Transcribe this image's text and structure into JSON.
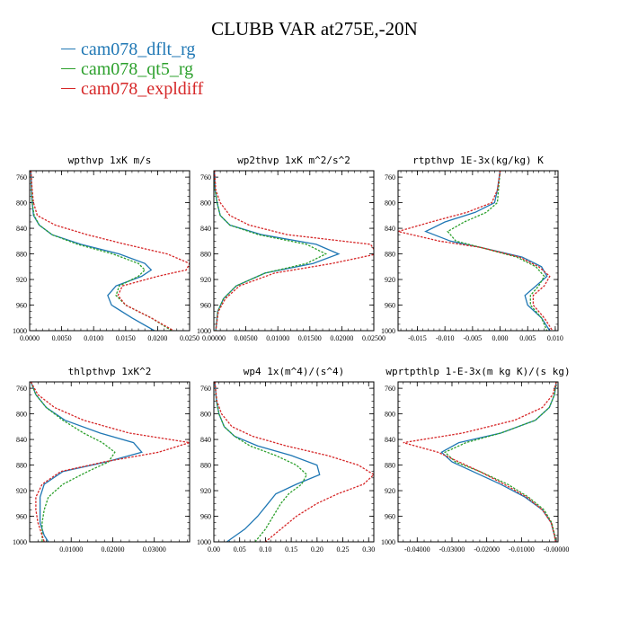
{
  "title": "CLUBB VAR at275E,-20N",
  "legend": [
    {
      "label": "cam078_dflt_rg",
      "color": "#1f77b4",
      "dash": false
    },
    {
      "label": "cam078_qt5_rg",
      "color": "#2ca02c",
      "dash": true
    },
    {
      "label": "cam078_expldiff",
      "color": "#d62728",
      "dash": true
    }
  ],
  "chart_data": [
    {
      "type": "line",
      "title": "wpthvp  1xK m/s",
      "xlim": [
        0,
        0.025
      ],
      "ylim": [
        1000,
        750
      ],
      "xticks": [
        0,
        0.005,
        0.01,
        0.015,
        0.02,
        0.025
      ],
      "xtick_labels": [
        "0.0000",
        "0.0050",
        "0.0100",
        "0.0150",
        "0.0200",
        "0.0250"
      ],
      "yticks": [
        760,
        800,
        840,
        880,
        920,
        960,
        1000
      ],
      "y": [
        750,
        780,
        800,
        820,
        835,
        850,
        865,
        880,
        895,
        905,
        915,
        930,
        945,
        960,
        980,
        1000
      ],
      "series": [
        {
          "name": "cam078_dflt_rg",
          "x": [
            0.0002,
            0.0003,
            0.0004,
            0.0006,
            0.0015,
            0.0035,
            0.008,
            0.014,
            0.018,
            0.019,
            0.0175,
            0.0135,
            0.0122,
            0.0128,
            0.016,
            0.0195
          ]
        },
        {
          "name": "cam078_qt5_rg",
          "x": [
            0.0002,
            0.0003,
            0.0004,
            0.0007,
            0.0015,
            0.0035,
            0.0075,
            0.013,
            0.017,
            0.018,
            0.017,
            0.014,
            0.0135,
            0.015,
            0.019,
            0.0222
          ]
        },
        {
          "name": "cam078_expldiff",
          "x": [
            0.0002,
            0.0004,
            0.0006,
            0.0012,
            0.004,
            0.009,
            0.015,
            0.0215,
            0.025,
            0.0245,
            0.02,
            0.0145,
            0.0138,
            0.015,
            0.019,
            0.0225
          ]
        }
      ]
    },
    {
      "type": "line",
      "title": "wp2thvp  1xK m^2/s^2",
      "xlim": [
        0,
        0.025
      ],
      "ylim": [
        1000,
        750
      ],
      "xticks": [
        0,
        0.005,
        0.01,
        0.015,
        0.02,
        0.025
      ],
      "xtick_labels": [
        "0.00000",
        "0.00500",
        "0.01000",
        "0.01500",
        "0.02000",
        "0.02500"
      ],
      "yticks": [
        760,
        800,
        840,
        880,
        920,
        960,
        1000
      ],
      "y": [
        750,
        780,
        800,
        820,
        835,
        850,
        865,
        880,
        895,
        910,
        930,
        950,
        970,
        1000
      ],
      "series": [
        {
          "name": "cam078_dflt_rg",
          "x": [
            0.0001,
            0.0002,
            0.0005,
            0.001,
            0.0025,
            0.0075,
            0.016,
            0.0195,
            0.0155,
            0.008,
            0.0035,
            0.0015,
            0.0006,
            0.0003
          ]
        },
        {
          "name": "cam078_qt5_rg",
          "x": [
            0.0001,
            0.0002,
            0.0005,
            0.001,
            0.0025,
            0.007,
            0.0145,
            0.0175,
            0.0145,
            0.008,
            0.0035,
            0.0015,
            0.0006,
            0.0003
          ]
        },
        {
          "name": "cam078_expldiff",
          "x": [
            0.0001,
            0.0003,
            0.001,
            0.0025,
            0.0055,
            0.0115,
            0.0245,
            0.0255,
            0.0185,
            0.0095,
            0.004,
            0.0018,
            0.0007,
            0.0003
          ]
        }
      ]
    },
    {
      "type": "line",
      "title": "rtpthvp  1E-3x(kg/kg) K",
      "xlim": [
        -0.0185,
        0.0105
      ],
      "ylim": [
        1000,
        750
      ],
      "xticks": [
        -0.015,
        -0.01,
        -0.005,
        0,
        0.005,
        0.01
      ],
      "xtick_labels": [
        "-0.015",
        "-0.010",
        "-0.005",
        "0.000",
        "0.005",
        "0.010"
      ],
      "yticks": [
        760,
        800,
        840,
        880,
        920,
        960,
        1000
      ],
      "y": [
        750,
        780,
        800,
        815,
        830,
        845,
        860,
        870,
        885,
        900,
        915,
        930,
        945,
        960,
        980,
        1000
      ],
      "series": [
        {
          "name": "cam078_dflt_rg",
          "x": [
            0,
            -0.0005,
            -0.001,
            -0.0045,
            -0.01,
            -0.0135,
            -0.009,
            -0.0035,
            0.004,
            0.0075,
            0.0085,
            0.0065,
            0.0045,
            0.005,
            0.0075,
            0.009
          ]
        },
        {
          "name": "cam078_qt5_rg",
          "x": [
            0,
            -0.0003,
            -0.0005,
            -0.0025,
            -0.0065,
            -0.0095,
            -0.008,
            -0.0035,
            0.003,
            0.0065,
            0.008,
            0.007,
            0.0055,
            0.0055,
            0.0075,
            0.0085
          ]
        },
        {
          "name": "cam078_expldiff",
          "x": [
            0,
            -0.0005,
            -0.0015,
            -0.006,
            -0.0125,
            -0.0185,
            -0.011,
            -0.0035,
            0.0035,
            0.007,
            0.009,
            0.008,
            0.006,
            0.006,
            0.008,
            0.0095
          ]
        }
      ]
    },
    {
      "type": "line",
      "title": "thlpthvp  1xK^2",
      "xlim": [
        0,
        0.0385
      ],
      "ylim": [
        1000,
        750
      ],
      "xticks": [
        0.01,
        0.02,
        0.03
      ],
      "xtick_labels": [
        "0.01000",
        "0.02000",
        "0.03000"
      ],
      "yticks": [
        760,
        800,
        840,
        880,
        920,
        960,
        1000
      ],
      "y": [
        750,
        770,
        790,
        810,
        830,
        845,
        860,
        875,
        890,
        910,
        930,
        950,
        970,
        990,
        1000
      ],
      "series": [
        {
          "name": "cam078_dflt_rg",
          "x": [
            0.0003,
            0.0015,
            0.004,
            0.0085,
            0.017,
            0.025,
            0.027,
            0.0185,
            0.008,
            0.0035,
            0.0025,
            0.0025,
            0.0025,
            0.0035,
            0.0045
          ]
        },
        {
          "name": "cam078_qt5_rg",
          "x": [
            0.0003,
            0.0015,
            0.004,
            0.008,
            0.013,
            0.0175,
            0.0205,
            0.019,
            0.014,
            0.008,
            0.0045,
            0.0035,
            0.003,
            0.003,
            0.003
          ]
        },
        {
          "name": "cam078_expldiff",
          "x": [
            0.0003,
            0.002,
            0.006,
            0.013,
            0.024,
            0.0385,
            0.031,
            0.018,
            0.0075,
            0.003,
            0.0015,
            0.0015,
            0.002,
            0.003,
            0.0035
          ]
        }
      ]
    },
    {
      "type": "line",
      "title": "wp4  1x(m^4)/(s^4)",
      "xlim": [
        0,
        0.31
      ],
      "ylim": [
        1000,
        750
      ],
      "xticks": [
        0,
        0.05,
        0.1,
        0.15,
        0.2,
        0.25,
        0.3
      ],
      "xtick_labels": [
        "0.00",
        "0.05",
        "0.10",
        "0.15",
        "0.20",
        "0.25",
        "0.30"
      ],
      "yticks": [
        760,
        800,
        840,
        880,
        920,
        960,
        1000
      ],
      "y": [
        750,
        780,
        800,
        820,
        835,
        850,
        865,
        880,
        895,
        910,
        925,
        940,
        960,
        980,
        1000
      ],
      "series": [
        {
          "name": "cam078_dflt_rg",
          "x": [
            0.002,
            0.005,
            0.01,
            0.02,
            0.04,
            0.085,
            0.15,
            0.2,
            0.205,
            0.16,
            0.12,
            0.105,
            0.085,
            0.06,
            0.025
          ]
        },
        {
          "name": "cam078_qt5_rg",
          "x": [
            0.002,
            0.005,
            0.01,
            0.02,
            0.04,
            0.07,
            0.12,
            0.16,
            0.18,
            0.17,
            0.145,
            0.13,
            0.115,
            0.1,
            0.08
          ]
        },
        {
          "name": "cam078_expldiff",
          "x": [
            0.002,
            0.006,
            0.015,
            0.035,
            0.075,
            0.14,
            0.22,
            0.28,
            0.31,
            0.29,
            0.24,
            0.2,
            0.16,
            0.13,
            0.1
          ]
        }
      ]
    },
    {
      "type": "line",
      "title": "wprtpthlp  1-E-3x(m kg K)/(s kg)",
      "xlim": [
        -0.0455,
        0.0005
      ],
      "ylim": [
        1000,
        750
      ],
      "xticks": [
        -0.04,
        -0.03,
        -0.02,
        -0.01,
        0
      ],
      "xtick_labels": [
        "-0.04000",
        "-0.03000",
        "-0.02000",
        "-0.01000",
        "-0.00000"
      ],
      "yticks": [
        760,
        800,
        840,
        880,
        920,
        960,
        1000
      ],
      "y": [
        750,
        770,
        790,
        810,
        830,
        845,
        860,
        875,
        890,
        910,
        930,
        950,
        970,
        990,
        1000
      ],
      "series": [
        {
          "name": "cam078_dflt_rg",
          "x": [
            0,
            -0.0005,
            -0.002,
            -0.006,
            -0.016,
            -0.028,
            -0.033,
            -0.03,
            -0.024,
            -0.016,
            -0.009,
            -0.004,
            -0.0015,
            -0.0005,
            -0.0002
          ]
        },
        {
          "name": "cam078_qt5_rg",
          "x": [
            0,
            -0.0005,
            -0.002,
            -0.006,
            -0.016,
            -0.026,
            -0.032,
            -0.029,
            -0.022,
            -0.014,
            -0.008,
            -0.0035,
            -0.0013,
            -0.0004,
            -0.0002
          ]
        },
        {
          "name": "cam078_expldiff",
          "x": [
            0,
            -0.001,
            -0.004,
            -0.012,
            -0.027,
            -0.044,
            -0.034,
            -0.028,
            -0.022,
            -0.015,
            -0.0085,
            -0.004,
            -0.0015,
            -0.0005,
            -0.0002
          ]
        }
      ]
    }
  ]
}
